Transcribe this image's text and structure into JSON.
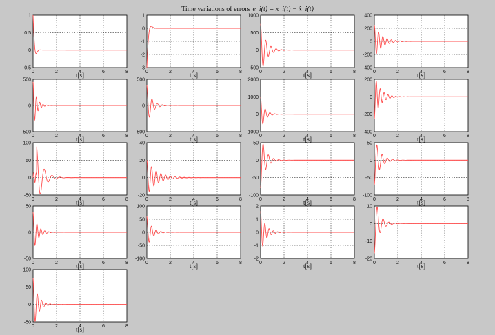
{
  "title": "Time variations of errors",
  "formula": "e_i(t) = x_i(t) − x̂_i(t)",
  "colors": {
    "line": "#ff4d4d",
    "background": "#c8c8c8",
    "axes": "#ffffff",
    "grid": "#000000"
  },
  "chart_data": [
    {
      "type": "line",
      "xlabel": "t[s]",
      "xlim": [
        0,
        8
      ],
      "ylim": [
        -0.5,
        1
      ],
      "yticks": [
        "1",
        "0.5",
        "0",
        "-0.5"
      ],
      "xticks": [
        "0",
        "2",
        "4",
        "6",
        "8"
      ],
      "grid": true,
      "signal": {
        "peak": 1,
        "decay": 8,
        "freq": 6,
        "start": 0
      }
    },
    {
      "type": "line",
      "xlabel": "t[s]",
      "xlim": [
        0,
        8
      ],
      "ylim": [
        -3,
        1
      ],
      "yticks": [
        "1",
        "0",
        "-1",
        "-2",
        "-3"
      ],
      "xticks": [
        "0",
        "2",
        "4",
        "6",
        "8"
      ],
      "grid": true,
      "signal": {
        "peak": -3,
        "decay": 7,
        "freq": 4,
        "start": 0
      }
    },
    {
      "type": "line",
      "xlabel": "t[s]",
      "xlim": [
        0,
        8
      ],
      "ylim": [
        -500,
        1000
      ],
      "yticks": [
        "1000",
        "500",
        "0",
        "-500"
      ],
      "xticks": [
        "0",
        "2",
        "4",
        "6",
        "8"
      ],
      "grid": true,
      "signal": {
        "peak": 750,
        "decay": 2.2,
        "freq": 9,
        "start": 0
      }
    },
    {
      "type": "line",
      "xlabel": "t[s]",
      "xlim": [
        0,
        8
      ],
      "ylim": [
        -400,
        400
      ],
      "yticks": [
        "400",
        "200",
        "0",
        "-200",
        "-400"
      ],
      "xticks": [
        "0",
        "2",
        "4",
        "6",
        "8"
      ],
      "grid": true,
      "signal": {
        "peak": 250,
        "decay": 1.6,
        "freq": 11,
        "start": 0
      }
    },
    {
      "type": "line",
      "xlabel": "t[s]",
      "xlim": [
        0,
        8
      ],
      "ylim": [
        -500,
        500
      ],
      "yticks": [
        "500",
        "0",
        "-500"
      ],
      "xticks": [
        "0",
        "2",
        "4",
        "6",
        "8"
      ],
      "grid": true,
      "signal": {
        "peak": 450,
        "decay": 3.5,
        "freq": 14,
        "start": 0
      }
    },
    {
      "type": "line",
      "xlabel": "t[s]",
      "xlim": [
        0,
        8
      ],
      "ylim": [
        -500,
        500
      ],
      "yticks": [
        "500",
        "0",
        "-500"
      ],
      "xticks": [
        "0",
        "2",
        "4",
        "6",
        "8"
      ],
      "grid": true,
      "signal": {
        "peak": 380,
        "decay": 2.5,
        "freq": 9,
        "start": 0
      }
    },
    {
      "type": "line",
      "xlabel": "t[s]",
      "xlim": [
        0,
        8
      ],
      "ylim": [
        -1000,
        2000
      ],
      "yticks": [
        "2000",
        "1000",
        "0",
        "-1000"
      ],
      "xticks": [
        "0",
        "2",
        "4",
        "6",
        "8"
      ],
      "grid": true,
      "signal": {
        "peak": 1000,
        "decay": 3,
        "freq": 10,
        "start": 0
      }
    },
    {
      "type": "line",
      "xlabel": "t[s]",
      "xlim": [
        0,
        8
      ],
      "ylim": [
        -400,
        200
      ],
      "yticks": [
        "200",
        "0",
        "-200",
        "-400"
      ],
      "xticks": [
        "0",
        "2",
        "4",
        "6",
        "8"
      ],
      "grid": true,
      "signal": {
        "peak": -250,
        "decay": 2,
        "freq": 12,
        "start": 0
      }
    },
    {
      "type": "line",
      "xlabel": "t[s]",
      "xlim": [
        0,
        8
      ],
      "ylim": [
        -50,
        100
      ],
      "yticks": [
        "100",
        "50",
        "0",
        "-50"
      ],
      "xticks": [
        "0",
        "2",
        "4",
        "6",
        "8"
      ],
      "grid": true,
      "signal": {
        "peak": 90,
        "decay": 2,
        "freq": 6,
        "start": 0.3
      }
    },
    {
      "type": "line",
      "xlabel": "t[s]",
      "xlim": [
        0,
        8
      ],
      "ylim": [
        -20,
        40
      ],
      "yticks": [
        "40",
        "20",
        "0",
        "-20"
      ],
      "xticks": [
        "0",
        "2",
        "4",
        "6",
        "8"
      ],
      "grid": true,
      "signal": {
        "peak": 20,
        "decay": 1.2,
        "freq": 10,
        "start": 0
      }
    },
    {
      "type": "line",
      "xlabel": "t[s]",
      "xlim": [
        0,
        8
      ],
      "ylim": [
        -100,
        50
      ],
      "yticks": [
        "50",
        "0",
        "-50",
        "-100"
      ],
      "xticks": [
        "0",
        "2",
        "4",
        "6",
        "8"
      ],
      "grid": true,
      "signal": {
        "peak": -80,
        "decay": 2.5,
        "freq": 9,
        "start": 0
      }
    },
    {
      "type": "line",
      "xlabel": "t[s]",
      "xlim": [
        0,
        8
      ],
      "ylim": [
        -100,
        50
      ],
      "yticks": [
        "50",
        "0",
        "-50",
        "-100"
      ],
      "xticks": [
        "0",
        "2",
        "4",
        "6",
        "8"
      ],
      "grid": true,
      "signal": {
        "peak": -70,
        "decay": 2.2,
        "freq": 9,
        "start": 0
      }
    },
    {
      "type": "line",
      "xlabel": "t[s]",
      "xlim": [
        0,
        8
      ],
      "ylim": [
        -50,
        50
      ],
      "yticks": [
        "50",
        "0",
        "-50"
      ],
      "xticks": [
        "0",
        "2",
        "4",
        "6",
        "8"
      ],
      "grid": true,
      "signal": {
        "peak": 38,
        "decay": 2.6,
        "freq": 12,
        "start": 0
      }
    },
    {
      "type": "line",
      "xlabel": "t[s]",
      "xlim": [
        0,
        8
      ],
      "ylim": [
        -100,
        100
      ],
      "yticks": [
        "100",
        "50",
        "0",
        "-50",
        "-100"
      ],
      "xticks": [
        "0",
        "2",
        "4",
        "6",
        "8"
      ],
      "grid": true,
      "signal": {
        "peak": 60,
        "decay": 2.4,
        "freq": 10,
        "start": 0
      }
    },
    {
      "type": "line",
      "xlabel": "t[s]",
      "xlim": [
        0,
        8
      ],
      "ylim": [
        -2,
        2
      ],
      "yticks": [
        "2",
        "1",
        "0",
        "-1",
        "-2"
      ],
      "xticks": [
        "0",
        "2",
        "4",
        "6",
        "8"
      ],
      "grid": true,
      "signal": {
        "peak": 1.6,
        "decay": 2.4,
        "freq": 11,
        "start": 0
      }
    },
    {
      "type": "line",
      "xlabel": "t[s]",
      "xlim": [
        0,
        8
      ],
      "ylim": [
        -20,
        10
      ],
      "yticks": [
        "10",
        "0",
        "-10",
        "-20"
      ],
      "xticks": [
        "0",
        "2",
        "4",
        "6",
        "8"
      ],
      "grid": true,
      "signal": {
        "peak": -17,
        "decay": 2.4,
        "freq": 8,
        "start": 0
      }
    },
    {
      "type": "line",
      "xlabel": "t[s]",
      "xlim": [
        0,
        8
      ],
      "ylim": [
        -50,
        100
      ],
      "yticks": [
        "100",
        "50",
        "0",
        "-50"
      ],
      "xticks": [
        "0",
        "2",
        "4",
        "6",
        "8"
      ],
      "grid": true,
      "signal": {
        "peak": 75,
        "decay": 2.5,
        "freq": 11,
        "start": 0
      }
    }
  ]
}
